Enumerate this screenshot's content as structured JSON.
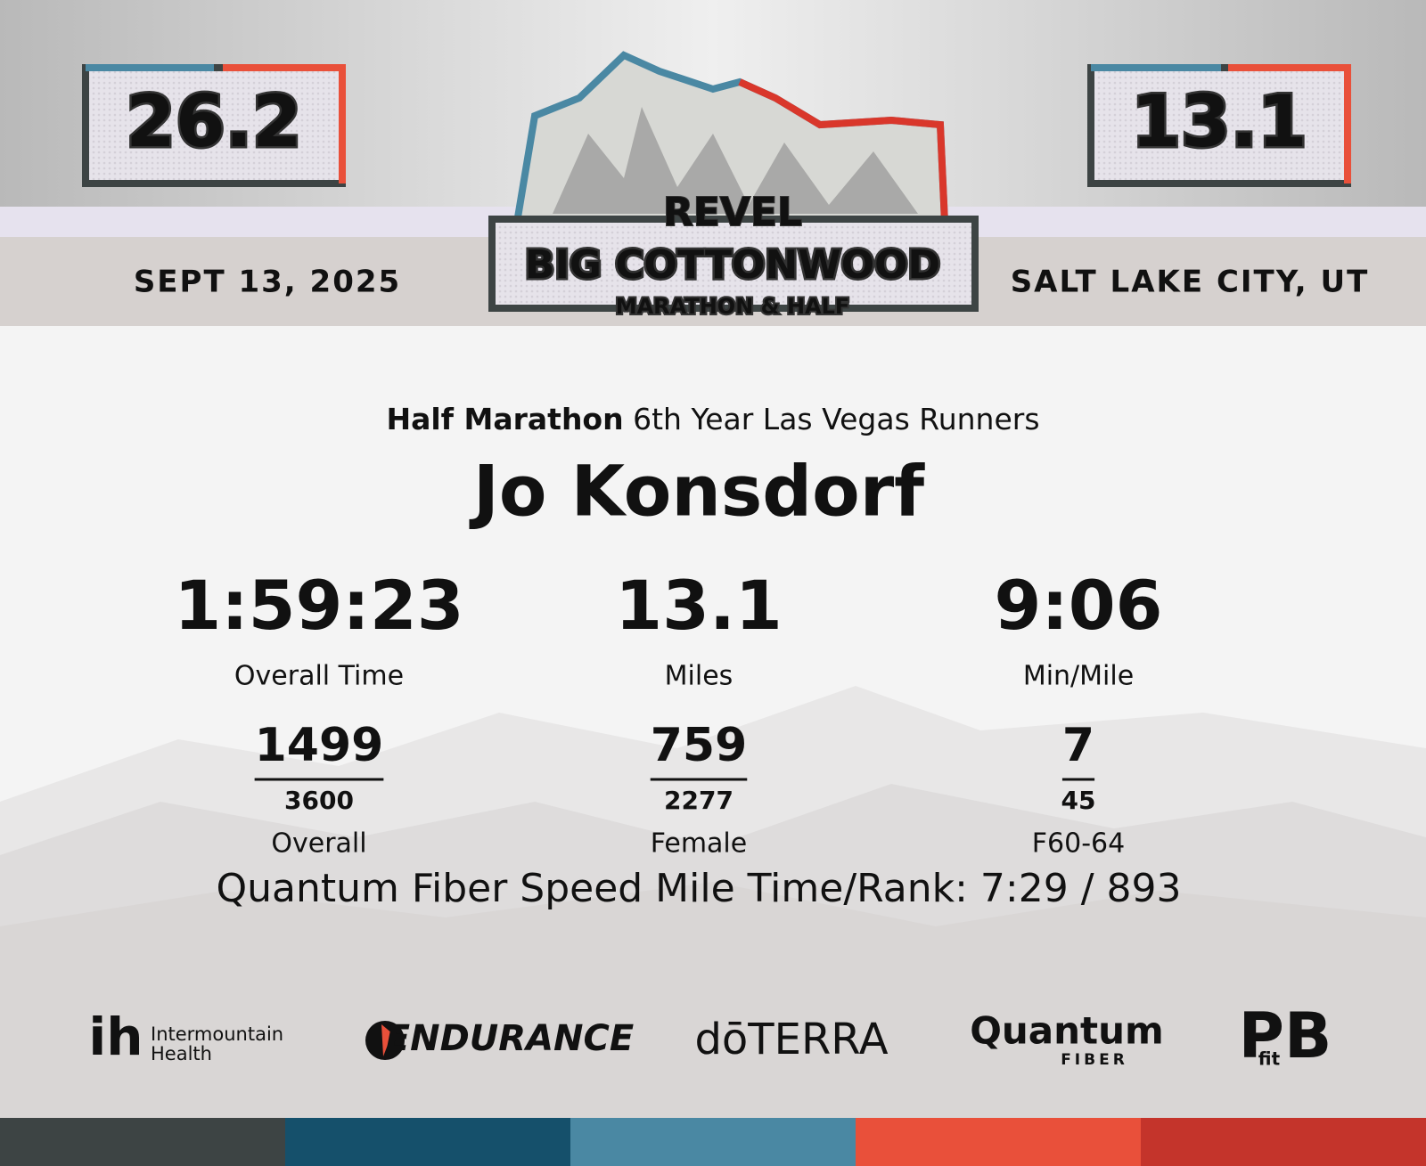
{
  "header": {
    "badge_left": "26.2",
    "badge_right": "13.1",
    "date": "SEPT 13, 2025",
    "location": "SALT LAKE CITY, UT",
    "logo": {
      "brand": "REVEL",
      "title": "BIG COTTONWOOD",
      "subtitle": "MARATHON & HALF"
    }
  },
  "result": {
    "race": "Half Marathon",
    "team": "6th Year Las Vegas Runners",
    "name": "Jo Konsdorf",
    "stats": [
      {
        "value": "1:59:23",
        "label": "Overall Time"
      },
      {
        "value": "13.1",
        "label": "Miles"
      },
      {
        "value": "9:06",
        "label": "Min/Mile"
      }
    ],
    "ranks": [
      {
        "rank": "1499",
        "total": "3600",
        "label": "Overall"
      },
      {
        "rank": "759",
        "total": "2277",
        "label": "Female"
      },
      {
        "rank": "7",
        "total": "45",
        "label": "F60-64"
      }
    ],
    "speed_mile": "Quantum Fiber Speed Mile Time/Rank: 7:29 / 893"
  },
  "sponsors": {
    "intermountain": [
      "Intermountain",
      "Health"
    ],
    "gatorade": "ENDURANCE",
    "doterra": "dōTERRA",
    "quantum": [
      "Quantum",
      "FIBER"
    ],
    "pbfit": [
      "PB",
      "fit"
    ]
  }
}
